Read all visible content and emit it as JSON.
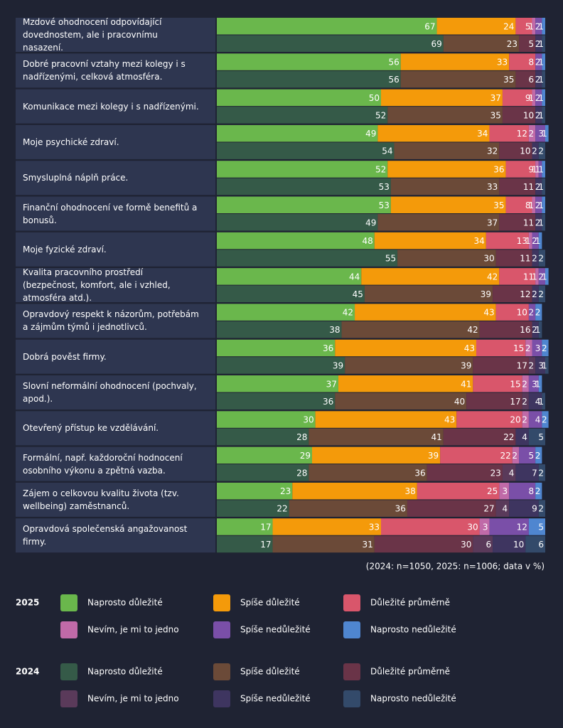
{
  "chart_data": {
    "type": "stacked-bar-horizontal",
    "categories": [
      "Mzdové ohodnocení odpovídající dovednostem, ale i pracovnímu nasazení.",
      "Dobré pracovní vztahy mezi kolegy i s nadřízenými, celková atmosféra.",
      "Komunikace mezi kolegy i s nadřízenými.",
      "Moje psychické zdraví.",
      "Smysluplná náplň práce.",
      "Finanční ohodnocení ve formě benefitů a bonusů.",
      "Moje fyzické zdraví.",
      "Kvalita pracovního prostředí (bezpečnost, komfort, ale i  vzhled, atmosféra atd.).",
      "Opravdový respekt k názorům, potřebám a zájmům týmů i jednotlivců.",
      "Dobrá pověst firmy.",
      "Slovní neformální ohodnocení (pochvaly, apod.).",
      "Otevřený přístup ke vzdělávání.",
      "Formální, např. každoroční hodnocení osobního výkonu a zpětná vazba.",
      "Zájem o celkovou kvalitu života (tzv. wellbeing) zaměstnanců.",
      "Opravdová společenská angažovanost firmy."
    ],
    "xlim": [
      0,
      100
    ],
    "note": "(2024: n=1050, 2025: n=1006; data v %)",
    "groups": [
      {
        "name": "2025",
        "series": [
          {
            "name": "Naprosto důležité",
            "color": "#6ab74c",
            "values": [
              67,
              56,
              50,
              49,
              52,
              53,
              48,
              44,
              42,
              36,
              37,
              30,
              29,
              23,
              17
            ]
          },
          {
            "name": "Spíše důležité",
            "color": "#f49a0a",
            "values": [
              24,
              33,
              37,
              34,
              36,
              35,
              34,
              42,
              43,
              43,
              41,
              43,
              39,
              38,
              33
            ]
          },
          {
            "name": "Důležité průměrně",
            "color": "#d9566b",
            "values": [
              5,
              8,
              9,
              12,
              9,
              8,
              13,
              11,
              10,
              15,
              15,
              20,
              22,
              25,
              30
            ]
          },
          {
            "name": "Nevím, je mi to jedno",
            "color": "#c06aa8",
            "values": [
              1,
              0,
              1,
              2,
              1,
              1,
              1,
              1,
              0,
              2,
              2,
              2,
              2,
              3,
              3
            ]
          },
          {
            "name": "Spíše nedůležité",
            "color": "#7a4fa8",
            "values": [
              2,
              2,
              2,
              3,
              1,
              2,
              2,
              2,
              2,
              3,
              3,
              4,
              5,
              8,
              12
            ]
          },
          {
            "name": "Naprosto nedůležité",
            "color": "#4f86d0",
            "values": [
              1,
              1,
              1,
              1,
              1,
              1,
              1,
              1,
              2,
              2,
              1,
              2,
              2,
              2,
              5
            ]
          }
        ]
      },
      {
        "name": "2024",
        "series": [
          {
            "name": "Naprosto důležité",
            "color": "#355a48",
            "values": [
              69,
              56,
              52,
              54,
              53,
              49,
              55,
              45,
              38,
              39,
              36,
              28,
              28,
              22,
              17
            ]
          },
          {
            "name": "Spíše důležité",
            "color": "#6b4a38",
            "values": [
              23,
              35,
              35,
              32,
              33,
              37,
              30,
              39,
              42,
              39,
              40,
              41,
              36,
              36,
              31
            ]
          },
          {
            "name": "Důležité průměrně",
            "color": "#6a3448",
            "values": [
              5,
              6,
              10,
              10,
              11,
              11,
              11,
              12,
              16,
              17,
              17,
              22,
              23,
              27,
              30
            ]
          },
          {
            "name": "Nevím, je mi to jedno",
            "color": "#5a3a5a",
            "values": [
              0,
              0,
              0,
              0,
              0,
              0,
              0,
              0,
              0,
              2,
              2,
              0,
              4,
              4,
              6
            ]
          },
          {
            "name": "Spíše nedůležité",
            "color": "#3e3560",
            "values": [
              2,
              2,
              2,
              2,
              2,
              2,
              2,
              2,
              2,
              3,
              4,
              4,
              7,
              9,
              10
            ]
          },
          {
            "name": "Naprosto nedůležité",
            "color": "#334a6a",
            "values": [
              1,
              1,
              1,
              2,
              1,
              1,
              2,
              2,
              1,
              1,
              1,
              5,
              2,
              2,
              6
            ]
          }
        ]
      }
    ]
  }
}
